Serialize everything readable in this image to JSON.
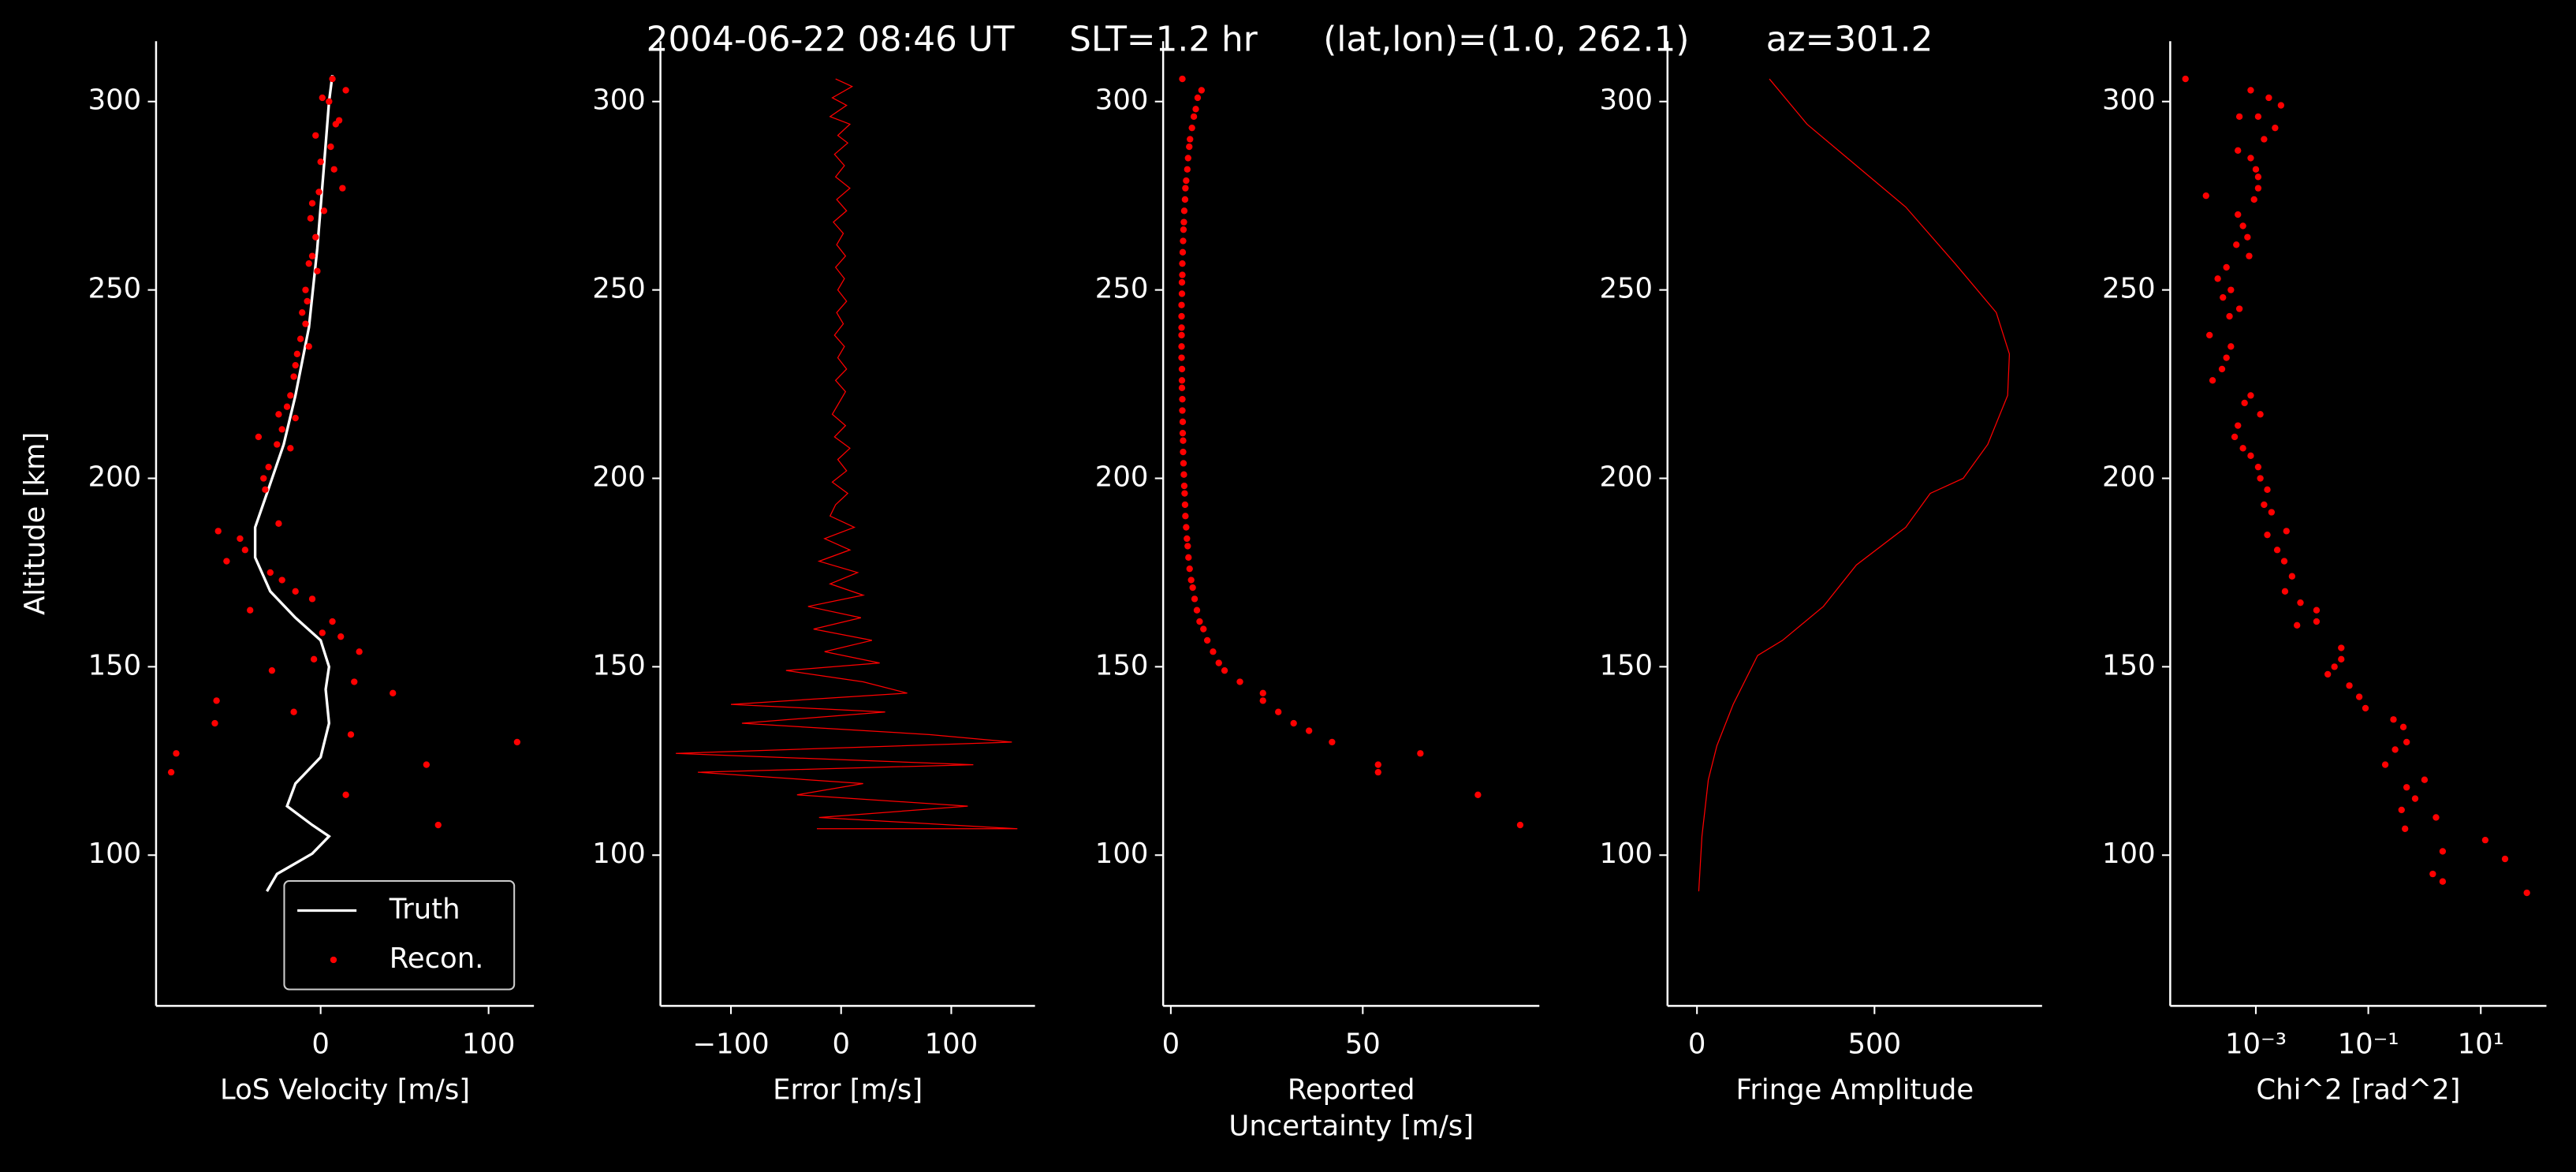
{
  "title": "2004-06-22 08:46 UT     SLT=1.2 hr      (lat,lon)=(1.0, 262.1)       az=301.2",
  "chart_data": [
    {
      "type": "line",
      "xlabel": "LoS Velocity [m/s]",
      "ylabel": "Altitude [km]",
      "xlim": [
        -98,
        127
      ],
      "ylim": [
        60,
        316
      ],
      "xticks": [
        0,
        100
      ],
      "yticks": [
        100,
        150,
        200,
        250,
        300
      ],
      "legend": "lower right",
      "series": [
        {
          "name": "Truth",
          "color": "#ffffff",
          "x": [
            7,
            5,
            2,
            -2,
            -7,
            -15,
            -22,
            -32,
            -39,
            -39,
            -30,
            -15,
            0,
            5,
            3,
            5,
            0,
            -15,
            -20,
            -5,
            5,
            -5,
            -26,
            -32
          ],
          "y": [
            307,
            300,
            283,
            261,
            240,
            222,
            209,
            196,
            187,
            179,
            170,
            163,
            157,
            150,
            144,
            135,
            126,
            119,
            113,
            108,
            105,
            100.4,
            95,
            90.4
          ]
        },
        {
          "name": "Recon.",
          "type": "scatter",
          "color": "#ff0000",
          "x": [
            7,
            15,
            1,
            5,
            11,
            9,
            -3,
            6,
            0,
            8,
            13,
            -1,
            -5,
            2,
            -6,
            -3,
            -5,
            -7,
            -2,
            -9,
            -8,
            -11,
            -9,
            -12,
            -7,
            -14,
            -15,
            -16,
            -18,
            -20,
            -25,
            -15,
            -23,
            -37,
            -26,
            -18,
            -31,
            -34,
            -33,
            -25,
            -61,
            -48,
            -45,
            -56,
            -30,
            -23,
            -15,
            -5,
            -42,
            7,
            1,
            12,
            23,
            -4,
            -29,
            20,
            43,
            -62,
            -16,
            -63,
            18,
            117,
            -86,
            63,
            -89,
            15,
            70
          ],
          "y": [
            306,
            303,
            301,
            300,
            295,
            294,
            291,
            288,
            284,
            282,
            277,
            276,
            273,
            271,
            269,
            264,
            259,
            257,
            255,
            250,
            247,
            244,
            241,
            237,
            235,
            233,
            230,
            227,
            222,
            219,
            217,
            216,
            213,
            211,
            209,
            208,
            203,
            200,
            197,
            188,
            186,
            184,
            181,
            178,
            175,
            173,
            170,
            168,
            165,
            162,
            159,
            158,
            154,
            152,
            149,
            146,
            143,
            141,
            138,
            135,
            132,
            130,
            127,
            124,
            122,
            116,
            108
          ]
        }
      ]
    },
    {
      "type": "line",
      "xlabel": "Error [m/s]",
      "xlim": [
        -164,
        176
      ],
      "ylim": [
        60,
        316
      ],
      "xticks": [
        {
          "value": -100,
          "label": "−100"
        },
        0,
        100
      ],
      "yticks": [
        100,
        150,
        200,
        250,
        300
      ],
      "series": [
        {
          "color": "#ff0000",
          "x": [
            -5,
            10,
            -8,
            5,
            -10,
            8,
            -3,
            6,
            -6,
            3,
            -5,
            8,
            -4,
            5,
            -7,
            2,
            -4,
            4,
            -5,
            3,
            -3,
            5,
            -4,
            2,
            -6,
            3,
            -3,
            5,
            -5,
            4,
            -2,
            -8,
            4,
            -6,
            8,
            -3,
            5,
            -8,
            6,
            -5,
            -10,
            12,
            -15,
            8,
            -20,
            15,
            -10,
            20,
            -30,
            18,
            -25,
            28,
            -15,
            35,
            -50,
            20,
            60,
            -100,
            40,
            -90,
            80,
            155,
            -150,
            120,
            -130,
            20,
            -40,
            115,
            -20,
            160,
            -22
          ],
          "y": [
            306,
            304,
            301,
            299,
            296,
            294,
            291,
            289,
            286,
            283,
            280,
            277,
            274,
            271,
            268,
            265,
            262,
            259,
            256,
            253,
            250,
            247,
            244,
            241,
            238,
            235,
            232,
            229,
            226,
            223,
            220,
            217,
            214,
            211,
            208,
            205,
            202,
            199,
            196,
            193,
            190,
            187,
            184,
            181,
            178,
            175,
            172,
            169,
            166,
            163,
            160,
            157,
            154,
            151,
            149,
            146,
            143,
            140,
            138,
            135,
            132,
            130,
            127,
            124,
            122,
            119,
            116,
            113,
            110,
            107,
            107
          ]
        }
      ]
    },
    {
      "type": "scatter",
      "xlabel": [
        "Reported",
        "Uncertainty [m/s]"
      ],
      "xlim": [
        -2,
        96
      ],
      "ylim": [
        60,
        316
      ],
      "xticks": [
        0,
        50
      ],
      "yticks": [
        100,
        150,
        200,
        250,
        300
      ],
      "series": [
        {
          "color": "#ff0000",
          "x": [
            3,
            8,
            7,
            6.5,
            6,
            5.5,
            5,
            4.8,
            4.5,
            4.3,
            4,
            3.8,
            3.7,
            3.5,
            3.4,
            3.3,
            3.2,
            3.1,
            3,
            3,
            2.9,
            2.9,
            2.8,
            2.8,
            2.8,
            2.8,
            2.8,
            2.8,
            2.9,
            2.9,
            2.9,
            3,
            3,
            3.1,
            3.1,
            3.2,
            3.2,
            3.3,
            3.4,
            3.5,
            3.6,
            3.7,
            3.8,
            4,
            4.2,
            4.4,
            4.6,
            4.9,
            5.3,
            5.7,
            6.2,
            6.8,
            7.5,
            8.5,
            9.5,
            11,
            12.5,
            14,
            18,
            24,
            24,
            28,
            32,
            36,
            42,
            65,
            54,
            54,
            80,
            91
          ],
          "y": [
            306,
            303,
            301,
            298,
            296,
            293,
            290,
            288,
            285,
            282,
            279,
            277,
            274,
            271,
            268,
            266,
            263,
            260,
            257,
            254,
            252,
            249,
            246,
            243,
            240,
            238,
            235,
            232,
            229,
            226,
            224,
            221,
            218,
            215,
            212,
            210,
            207,
            204,
            201,
            198,
            196,
            193,
            190,
            187,
            184,
            182,
            179,
            176,
            173,
            171,
            168,
            165,
            162,
            160,
            157,
            154,
            151,
            149,
            146,
            143,
            141,
            138,
            135,
            133,
            130,
            127,
            124,
            122,
            116,
            108
          ]
        }
      ]
    },
    {
      "type": "line",
      "xlabel": "Fringe Amplitude",
      "xlim": [
        -83,
        972
      ],
      "ylim": [
        60,
        316
      ],
      "xticks": [
        0,
        500
      ],
      "yticks": [
        100,
        150,
        200,
        250,
        300
      ],
      "series": [
        {
          "color": "#ff0000",
          "x": [
            204,
            310,
            449,
            588,
            727,
            843,
            880,
            875,
            819,
            750,
            657,
            588,
            449,
            356,
            241,
            171,
            102,
            56,
            32,
            14,
            5
          ],
          "y": [
            306,
            294,
            283,
            272,
            257,
            244,
            233,
            222,
            209,
            200,
            196,
            187,
            177,
            166,
            157,
            153,
            140,
            129,
            120,
            105,
            90.4
          ]
        }
      ]
    },
    {
      "type": "scatter",
      "xlabel": "Chi^2 [rad^2]",
      "xscale": "log",
      "xlim": [
        3e-05,
        147
      ],
      "ylim": [
        60,
        316
      ],
      "xticks": [
        {
          "value": 0.001,
          "label": "10⁻³"
        },
        {
          "value": 0.1,
          "label": "10⁻¹"
        },
        {
          "value": 10,
          "label": "10¹"
        }
      ],
      "yticks": [
        100,
        150,
        200,
        250,
        300
      ],
      "series": [
        {
          "color": "#ff0000",
          "x": [
            5.6e-05,
            0.00081,
            0.0017,
            0.0028,
            0.0011,
            0.00051,
            0.0022,
            0.0014,
            0.00048,
            0.00081,
            0.001,
            0.0011,
            0.0011,
            0.00013,
            0.00093,
            0.00048,
            0.00059,
            0.00071,
            0.00045,
            0.00076,
            0.0003,
            0.00021,
            0.00036,
            0.00026,
            0.00051,
            0.00034,
            0.00015,
            0.00036,
            0.0003,
            0.00025,
            0.00017,
            0.00081,
            0.00063,
            0.0012,
            0.00048,
            0.00042,
            0.00059,
            0.00081,
            0.0011,
            0.0012,
            0.0016,
            0.0014,
            0.0019,
            0.0035,
            0.0016,
            0.0024,
            0.0032,
            0.0044,
            0.0033,
            0.0062,
            0.012,
            0.012,
            0.0054,
            0.033,
            0.033,
            0.025,
            0.019,
            0.046,
            0.069,
            0.089,
            0.28,
            0.42,
            0.48,
            0.3,
            0.2,
            1,
            0.48,
            0.68,
            0.39,
            1.6,
            0.45,
            12,
            27,
            2.1,
            1.4,
            2.1,
            66
          ],
          "y": [
            306,
            303,
            301,
            299,
            296,
            296,
            293,
            290,
            287,
            285,
            282,
            280,
            277,
            275,
            274,
            270,
            267,
            264,
            262,
            259,
            256,
            253,
            250,
            248,
            245,
            243,
            238,
            235,
            232,
            229,
            226,
            222,
            220,
            217,
            214,
            211,
            208,
            206,
            203,
            200,
            197,
            193,
            191,
            186,
            185,
            181,
            178,
            174,
            170,
            167,
            165,
            162,
            161,
            155,
            152,
            150,
            148,
            145,
            142,
            139,
            136,
            134,
            130,
            128,
            124,
            120,
            118,
            115,
            112,
            110,
            107,
            104,
            99,
            101,
            95,
            93,
            90
          ]
        }
      ]
    }
  ]
}
